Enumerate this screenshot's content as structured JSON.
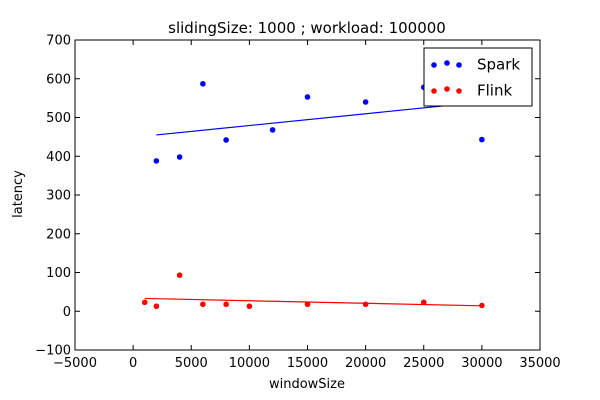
{
  "chart_data": {
    "type": "scatter",
    "title": "slidingSize: 1000 ; workload: 100000",
    "xlabel": "windowSize",
    "ylabel": "latency",
    "xlim": [
      -5000,
      35000
    ],
    "ylim": [
      -100,
      700
    ],
    "xticks": [
      -5000,
      0,
      5000,
      10000,
      15000,
      20000,
      25000,
      30000,
      35000
    ],
    "yticks": [
      -100,
      0,
      100,
      200,
      300,
      400,
      500,
      600,
      700
    ],
    "grid": false,
    "legend_position": "top-right",
    "series": [
      {
        "name": "Spark",
        "color": "#0000ff",
        "points": [
          {
            "x": 2000,
            "y": 388
          },
          {
            "x": 4000,
            "y": 398
          },
          {
            "x": 6000,
            "y": 587
          },
          {
            "x": 8000,
            "y": 442
          },
          {
            "x": 12000,
            "y": 468
          },
          {
            "x": 15000,
            "y": 553
          },
          {
            "x": 20000,
            "y": 540
          },
          {
            "x": 25000,
            "y": 578
          },
          {
            "x": 30000,
            "y": 443
          }
        ],
        "fit_line": [
          {
            "x": 2000,
            "y": 455
          },
          {
            "x": 30000,
            "y": 540
          }
        ]
      },
      {
        "name": "Flink",
        "color": "#ff0000",
        "points": [
          {
            "x": 1000,
            "y": 23
          },
          {
            "x": 2000,
            "y": 13
          },
          {
            "x": 4000,
            "y": 93
          },
          {
            "x": 6000,
            "y": 18
          },
          {
            "x": 8000,
            "y": 18
          },
          {
            "x": 10000,
            "y": 13
          },
          {
            "x": 15000,
            "y": 18
          },
          {
            "x": 20000,
            "y": 18
          },
          {
            "x": 25000,
            "y": 23
          },
          {
            "x": 30000,
            "y": 15
          }
        ],
        "fit_line": [
          {
            "x": 1000,
            "y": 33
          },
          {
            "x": 30000,
            "y": 14
          }
        ]
      }
    ]
  }
}
